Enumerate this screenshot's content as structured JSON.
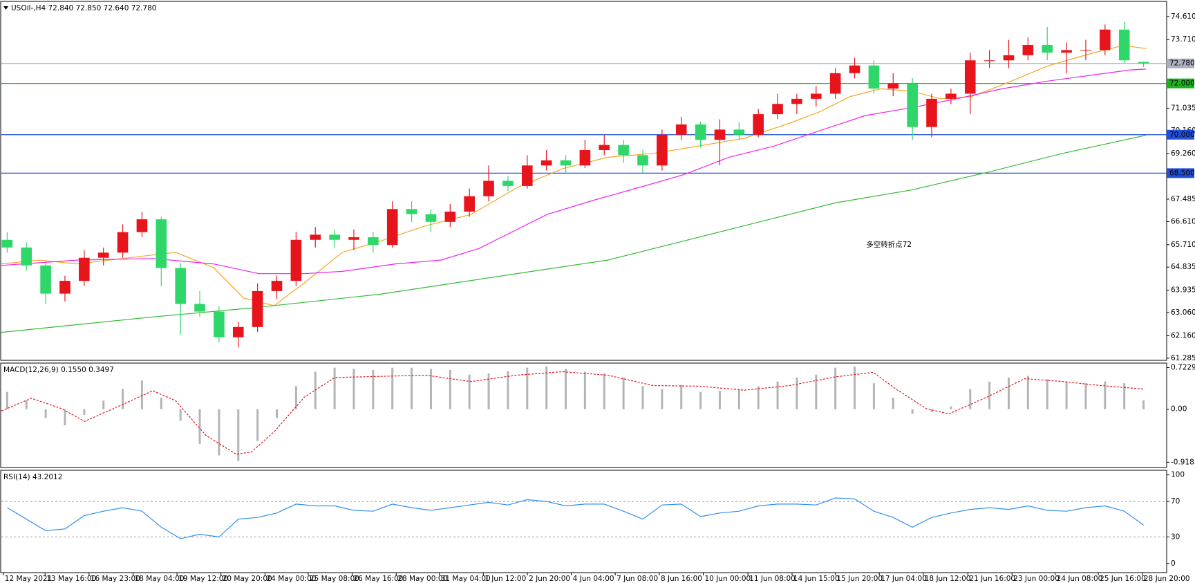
{
  "chart_data": [
    {
      "type": "candlestick",
      "title": "USOil-,H4  72.840 72.850 72.640 72.780",
      "ohlc": [
        [
          65.9,
          66.2,
          65.4,
          65.6
        ],
        [
          65.6,
          65.8,
          64.7,
          64.9
        ],
        [
          64.9,
          65.0,
          63.4,
          63.8
        ],
        [
          63.8,
          64.5,
          63.5,
          64.3
        ],
        [
          64.3,
          65.5,
          64.1,
          65.2
        ],
        [
          65.2,
          65.6,
          64.9,
          65.4
        ],
        [
          65.4,
          66.5,
          65.2,
          66.2
        ],
        [
          66.2,
          67.0,
          66.0,
          66.7
        ],
        [
          66.7,
          66.8,
          64.1,
          64.8
        ],
        [
          64.8,
          65.0,
          62.2,
          63.4
        ],
        [
          63.4,
          63.9,
          62.9,
          63.1
        ],
        [
          63.1,
          63.3,
          61.9,
          62.1
        ],
        [
          62.1,
          62.7,
          61.7,
          62.5
        ],
        [
          62.5,
          64.2,
          62.3,
          63.9
        ],
        [
          63.9,
          64.5,
          63.6,
          64.3
        ],
        [
          64.3,
          66.2,
          64.1,
          65.9
        ],
        [
          65.9,
          66.4,
          65.6,
          66.1
        ],
        [
          66.1,
          66.3,
          65.6,
          65.9
        ],
        [
          65.9,
          66.3,
          65.5,
          66.0
        ],
        [
          66.0,
          66.2,
          65.4,
          65.7
        ],
        [
          65.7,
          67.4,
          65.6,
          67.1
        ],
        [
          67.1,
          67.4,
          66.6,
          66.9
        ],
        [
          66.9,
          67.1,
          66.2,
          66.6
        ],
        [
          66.6,
          67.3,
          66.4,
          67.0
        ],
        [
          67.0,
          67.9,
          66.8,
          67.6
        ],
        [
          67.6,
          68.8,
          67.4,
          68.2
        ],
        [
          68.2,
          68.4,
          67.8,
          68.0
        ],
        [
          68.0,
          69.2,
          67.9,
          68.8
        ],
        [
          68.8,
          69.4,
          68.6,
          69.0
        ],
        [
          69.0,
          69.2,
          68.5,
          68.8
        ],
        [
          68.8,
          69.8,
          68.7,
          69.4
        ],
        [
          69.4,
          70.0,
          69.2,
          69.6
        ],
        [
          69.6,
          69.8,
          68.9,
          69.2
        ],
        [
          69.2,
          69.4,
          68.5,
          68.8
        ],
        [
          68.8,
          70.2,
          68.6,
          70.0
        ],
        [
          70.0,
          70.7,
          69.8,
          70.4
        ],
        [
          70.4,
          70.5,
          69.5,
          69.8
        ],
        [
          69.8,
          70.6,
          68.8,
          70.2
        ],
        [
          70.2,
          70.5,
          69.8,
          70.0
        ],
        [
          70.0,
          71.0,
          69.9,
          70.8
        ],
        [
          70.8,
          71.6,
          70.6,
          71.2
        ],
        [
          71.2,
          71.6,
          70.8,
          71.4
        ],
        [
          71.4,
          71.9,
          71.1,
          71.6
        ],
        [
          71.6,
          72.6,
          71.4,
          72.4
        ],
        [
          72.4,
          73.0,
          72.2,
          72.7
        ],
        [
          72.7,
          72.9,
          71.6,
          71.8
        ],
        [
          71.8,
          72.4,
          71.5,
          72.0
        ],
        [
          72.0,
          72.2,
          69.8,
          70.3
        ],
        [
          70.3,
          71.6,
          69.9,
          71.4
        ],
        [
          71.4,
          71.8,
          71.2,
          71.6
        ],
        [
          71.6,
          73.2,
          70.8,
          72.9
        ],
        [
          72.9,
          73.3,
          72.6,
          72.9
        ],
        [
          72.9,
          73.7,
          72.6,
          73.1
        ],
        [
          73.1,
          73.8,
          72.9,
          73.5
        ],
        [
          73.5,
          74.2,
          72.9,
          73.2
        ],
        [
          73.2,
          73.6,
          72.4,
          73.3
        ],
        [
          73.3,
          73.7,
          72.9,
          73.3
        ],
        [
          73.3,
          74.3,
          73.1,
          74.1
        ],
        [
          74.1,
          74.4,
          72.8,
          72.9
        ],
        [
          72.84,
          72.85,
          72.64,
          72.78
        ]
      ],
      "up_color": "#e8141b",
      "down_color": "#2fd76a",
      "xlim": [
        -0.3,
        60.2
      ],
      "xticks": [
        {
          "value": -0.2,
          "label": "12 May 2021"
        },
        {
          "value": 1.97,
          "label": "13 May 16:00"
        },
        {
          "value": 4.25,
          "label": "16 May 23:00"
        },
        {
          "value": 6.54,
          "label": "18 May 04:00"
        },
        {
          "value": 8.82,
          "label": "19 May 12:00"
        },
        {
          "value": 11.1,
          "label": "20 May 20:00"
        },
        {
          "value": 13.39,
          "label": "24 May 00:00"
        },
        {
          "value": 15.63,
          "label": "25 May 08:00"
        },
        {
          "value": 17.91,
          "label": "26 May 16:00"
        },
        {
          "value": 20.2,
          "label": "28 May 00:00"
        },
        {
          "value": 22.44,
          "label": "31 May 04:00"
        },
        {
          "value": 24.72,
          "label": "1 Jun 12:00"
        },
        {
          "value": 27.01,
          "label": "2 Jun 20:00"
        },
        {
          "value": 29.29,
          "label": "4 Jun 04:00"
        },
        {
          "value": 31.57,
          "label": "7 Jun 08:00"
        },
        {
          "value": 33.86,
          "label": "8 Jun 16:00"
        },
        {
          "value": 36.14,
          "label": "10 Jun 00:00"
        },
        {
          "value": 38.46,
          "label": "11 Jun 08:00"
        },
        {
          "value": 40.75,
          "label": "14 Jun 15:00"
        },
        {
          "value": 42.99,
          "label": "15 Jun 20:00"
        },
        {
          "value": 45.28,
          "label": "17 Jun 04:00"
        },
        {
          "value": 47.56,
          "label": "18 Jun 12:00"
        },
        {
          "value": 49.88,
          "label": "21 Jun 16:00"
        },
        {
          "value": 52.17,
          "label": "23 Jun 00:00"
        },
        {
          "value": 54.41,
          "label": "24 Jun 08:00"
        },
        {
          "value": 56.65,
          "label": "25 Jun 16:00"
        },
        {
          "value": 58.94,
          "label": "28 Jun 20:00"
        }
      ],
      "ylim": [
        61.2,
        75.2
      ],
      "yticks": [
        {
          "value": 74.61,
          "label": "74.610"
        },
        {
          "value": 73.71,
          "label": "73.710"
        },
        {
          "value": 71.035,
          "label": "71.035"
        },
        {
          "value": 70.16,
          "label": "70.160"
        },
        {
          "value": 69.26,
          "label": "69.260"
        },
        {
          "value": 67.485,
          "label": "67.485"
        },
        {
          "value": 66.61,
          "label": "66.610"
        },
        {
          "value": 65.71,
          "label": "65.710"
        },
        {
          "value": 64.835,
          "label": "64.835"
        },
        {
          "value": 63.935,
          "label": "63.935"
        },
        {
          "value": 63.06,
          "label": "63.060"
        },
        {
          "value": 62.16,
          "label": "62.160"
        },
        {
          "value": 61.285,
          "label": "61.285"
        }
      ],
      "hlines": [
        {
          "value": 72.78,
          "label": "72.780",
          "color": "#a9b0c0",
          "text_color": "#000000"
        },
        {
          "value": 72,
          "label": "72.000",
          "color": "#1db31d",
          "text_color": "#ffffff"
        },
        {
          "value": 70,
          "label": "70.000",
          "color": "#1f4fd8",
          "text_color": "#ffffff"
        },
        {
          "value": 68.5,
          "label": "68.500",
          "color": "#1f4fd8",
          "text_color": "#ffffff"
        }
      ],
      "lines": [
        {
          "color": "#f5a623",
          "x": [
            -0.3,
            1.65,
            3.62,
            5.98,
            8.74,
            10.71,
            12.28,
            13.86,
            15.43,
            17.4,
            19.37,
            21.73,
            24.09,
            26.46,
            28.82,
            31.18,
            33.54,
            35.91,
            38.27,
            40.63,
            42.2,
            43.78,
            45.35,
            46.93,
            48.5,
            50.08,
            51.65,
            54.02,
            56.38,
            57.95,
            59.13
          ],
          "values": [
            64.96,
            65.11,
            64.96,
            65.17,
            65.41,
            64.82,
            63.63,
            63.33,
            64.22,
            65.41,
            65.85,
            66.45,
            66.89,
            67.93,
            68.67,
            69.12,
            69.27,
            69.56,
            69.86,
            70.45,
            70.9,
            71.49,
            71.79,
            71.7,
            71.4,
            71.49,
            71.94,
            72.68,
            73.19,
            73.48,
            73.36
          ]
        },
        {
          "color": "#ee22ee",
          "x": [
            -0.3,
            3.62,
            7.56,
            10.71,
            13.07,
            15.43,
            17.4,
            20.16,
            22.52,
            24.49,
            26.46,
            28.03,
            30.39,
            32.76,
            35.12,
            37.48,
            39.84,
            42.2,
            44.57,
            46.93,
            49.29,
            51.65,
            54.02,
            56.38,
            58.35,
            59.13
          ],
          "values": [
            64.9,
            65.11,
            65.17,
            64.96,
            64.58,
            64.58,
            64.67,
            64.96,
            65.11,
            65.56,
            66.3,
            66.89,
            67.43,
            67.93,
            68.44,
            69.12,
            69.56,
            70.16,
            70.75,
            71.05,
            71.4,
            71.79,
            72.09,
            72.33,
            72.53,
            72.56
          ]
        },
        {
          "color": "#33bb33",
          "x": [
            -0.3,
            7.56,
            12.68,
            19.37,
            27.24,
            31.18,
            35.12,
            39.06,
            42.99,
            46.93,
            50.87,
            54.8,
            59.13
          ],
          "values": [
            62.29,
            62.89,
            63.24,
            63.78,
            64.67,
            65.11,
            65.85,
            66.6,
            67.34,
            67.84,
            68.53,
            69.27,
            69.98
          ]
        }
      ],
      "annotation": {
        "text": "多空转折点72",
        "color": "#e8141b",
        "x": 44.6,
        "y": 65.7
      }
    },
    {
      "type": "macd",
      "title": "MACD(12,26,9) 0.1550 0.3497",
      "values": [
        0.3,
        0.15,
        -0.15,
        -0.28,
        -0.1,
        0.15,
        0.35,
        0.5,
        0.2,
        -0.2,
        -0.6,
        -0.8,
        -0.9,
        -0.55,
        -0.15,
        0.4,
        0.65,
        0.72,
        0.7,
        0.68,
        0.72,
        0.72,
        0.7,
        0.68,
        0.6,
        0.62,
        0.66,
        0.72,
        0.74,
        0.7,
        0.65,
        0.62,
        0.55,
        0.4,
        0.35,
        0.42,
        0.3,
        0.32,
        0.35,
        0.4,
        0.48,
        0.55,
        0.6,
        0.72,
        0.74,
        0.45,
        0.2,
        -0.08,
        -0.05,
        0.05,
        0.35,
        0.48,
        0.55,
        0.58,
        0.52,
        0.48,
        0.45,
        0.48,
        0.45,
        0.155
      ],
      "color": "#b4b4b4",
      "lines": [
        {
          "color": "#e8141b",
          "x": [
            -0.3,
            1.26,
            2.83,
            4.02,
            5.98,
            7.56,
            8.74,
            10.31,
            11.89,
            12.68,
            13.86,
            15.43,
            17.01,
            19.37,
            21.73,
            24.09,
            26.46,
            28.82,
            31.18,
            33.54,
            35.91,
            38.27,
            40.63,
            42.99,
            44.96,
            46.14,
            47.72,
            48.9,
            50.87,
            52.83,
            54.8,
            56.77,
            58.98
          ],
          "values": [
            -0.03,
            0.19,
            0.01,
            -0.21,
            0.08,
            0.32,
            0.15,
            -0.45,
            -0.78,
            -0.74,
            -0.39,
            0.21,
            0.55,
            0.57,
            0.59,
            0.48,
            0.59,
            0.65,
            0.59,
            0.41,
            0.4,
            0.33,
            0.41,
            0.56,
            0.64,
            0.35,
            0.01,
            -0.08,
            0.21,
            0.53,
            0.48,
            0.41,
            0.35
          ]
        }
      ],
      "ylim": [
        -1.01,
        0.8
      ],
      "yticks": [
        0.7229,
        {
          "value": 0,
          "label": "0.00"
        },
        -0.9185
      ]
    },
    {
      "type": "line",
      "title": "RSI(14) 43.2012",
      "values": [
        63,
        50,
        37,
        39,
        54,
        59,
        63,
        59,
        41,
        28,
        33,
        30,
        50,
        52,
        57,
        67,
        65,
        65,
        60,
        59,
        67,
        63,
        60,
        63,
        66,
        69,
        66,
        72,
        70,
        65,
        67,
        67,
        59,
        50,
        66,
        67,
        53,
        57,
        59,
        65,
        67,
        67,
        66,
        74,
        73,
        59,
        52,
        41,
        52,
        57,
        61,
        63,
        61,
        65,
        60,
        59,
        63,
        65,
        59,
        43.2012
      ],
      "color": "#2e8ff0",
      "ylim": [
        -10.3,
        105.2
      ],
      "yticks": [
        100,
        70,
        30,
        0
      ],
      "levels": [
        70,
        30
      ]
    }
  ]
}
